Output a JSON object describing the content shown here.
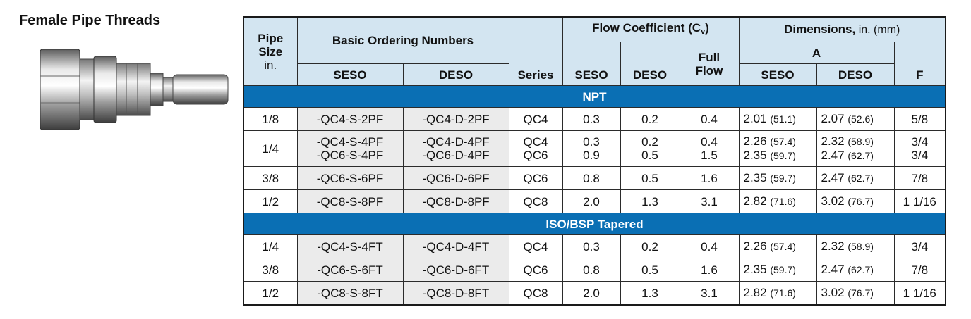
{
  "title": "Female Pipe Threads",
  "header": {
    "pipe_size": "Pipe Size",
    "pipe_size_unit": "in.",
    "basic_ordering": "Basic Ordering Numbers",
    "seso": "SESO",
    "deso": "DESO",
    "series": "Series",
    "flow_coefficient": "Flow Coefficient (C",
    "flow_sub": "v",
    "flow_close": ")",
    "full_flow": "Full Flow",
    "dimensions": "Dimensions,",
    "dimensions_unit": " in. (mm)",
    "a": "A",
    "f": "F"
  },
  "sections": [
    {
      "name": "NPT",
      "rows": [
        {
          "size": "1/8",
          "seso": [
            "-QC4-S-2PF"
          ],
          "deso": [
            "-QC4-D-2PF"
          ],
          "series": [
            "QC4"
          ],
          "cv_seso": [
            "0.3"
          ],
          "cv_deso": [
            "0.2"
          ],
          "full": [
            "0.4"
          ],
          "a_seso": [
            [
              "2.01",
              "(51.1)"
            ]
          ],
          "a_deso": [
            [
              "2.07",
              "(52.6)"
            ]
          ],
          "f": [
            "5/8"
          ]
        },
        {
          "size": "1/4",
          "seso": [
            "-QC4-S-4PF",
            "-QC6-S-4PF"
          ],
          "deso": [
            "-QC4-D-4PF",
            "-QC6-D-4PF"
          ],
          "series": [
            "QC4",
            "QC6"
          ],
          "cv_seso": [
            "0.3",
            "0.9"
          ],
          "cv_deso": [
            "0.2",
            "0.5"
          ],
          "full": [
            "0.4",
            "1.5"
          ],
          "a_seso": [
            [
              "2.26",
              "(57.4)"
            ],
            [
              "2.35",
              "(59.7)"
            ]
          ],
          "a_deso": [
            [
              "2.32",
              "(58.9)"
            ],
            [
              "2.47",
              "(62.7)"
            ]
          ],
          "f": [
            "3/4",
            "3/4"
          ]
        },
        {
          "size": "3/8",
          "seso": [
            "-QC6-S-6PF"
          ],
          "deso": [
            "-QC6-D-6PF"
          ],
          "series": [
            "QC6"
          ],
          "cv_seso": [
            "0.8"
          ],
          "cv_deso": [
            "0.5"
          ],
          "full": [
            "1.6"
          ],
          "a_seso": [
            [
              "2.35",
              "(59.7)"
            ]
          ],
          "a_deso": [
            [
              "2.47",
              "(62.7)"
            ]
          ],
          "f": [
            "7/8"
          ]
        },
        {
          "size": "1/2",
          "seso": [
            "-QC8-S-8PF"
          ],
          "deso": [
            "-QC8-D-8PF"
          ],
          "series": [
            "QC8"
          ],
          "cv_seso": [
            "2.0"
          ],
          "cv_deso": [
            "1.3"
          ],
          "full": [
            "3.1"
          ],
          "a_seso": [
            [
              "2.82",
              "(71.6)"
            ]
          ],
          "a_deso": [
            [
              "3.02",
              "(76.7)"
            ]
          ],
          "f": [
            "1 1/16"
          ]
        }
      ]
    },
    {
      "name": "ISO/BSP Tapered",
      "rows": [
        {
          "size": "1/4",
          "seso": [
            "-QC4-S-4FT"
          ],
          "deso": [
            "-QC4-D-4FT"
          ],
          "series": [
            "QC4"
          ],
          "cv_seso": [
            "0.3"
          ],
          "cv_deso": [
            "0.2"
          ],
          "full": [
            "0.4"
          ],
          "a_seso": [
            [
              "2.26",
              "(57.4)"
            ]
          ],
          "a_deso": [
            [
              "2.32",
              "(58.9)"
            ]
          ],
          "f": [
            "3/4"
          ]
        },
        {
          "size": "3/8",
          "seso": [
            "-QC6-S-6FT"
          ],
          "deso": [
            "-QC6-D-6FT"
          ],
          "series": [
            "QC6"
          ],
          "cv_seso": [
            "0.8"
          ],
          "cv_deso": [
            "0.5"
          ],
          "full": [
            "1.6"
          ],
          "a_seso": [
            [
              "2.35",
              "(59.7)"
            ]
          ],
          "a_deso": [
            [
              "2.47",
              "(62.7)"
            ]
          ],
          "f": [
            "7/8"
          ]
        },
        {
          "size": "1/2",
          "seso": [
            "-QC8-S-8FT"
          ],
          "deso": [
            "-QC8-D-8FT"
          ],
          "series": [
            "QC8"
          ],
          "cv_seso": [
            "2.0"
          ],
          "cv_deso": [
            "1.3"
          ],
          "full": [
            "3.1"
          ],
          "a_seso": [
            [
              "2.82",
              "(71.6)"
            ]
          ],
          "a_deso": [
            [
              "3.02",
              "(76.7)"
            ]
          ],
          "f": [
            "1 1/16"
          ]
        }
      ]
    }
  ]
}
